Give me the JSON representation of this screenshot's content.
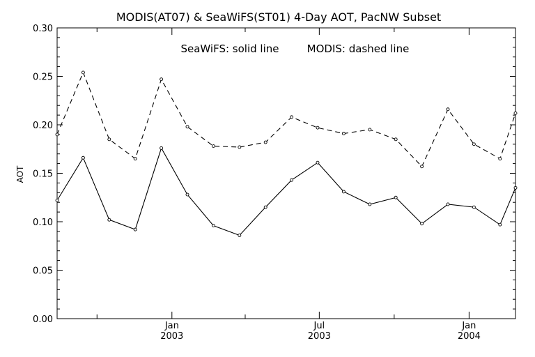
{
  "chart_data": {
    "type": "line",
    "title": "MODIS(AT07) & SeaWiFS(ST01) 4-Day AOT, PacNW Subset",
    "annotation_solid": "SeaWiFS: solid line",
    "annotation_dashed": "MODIS: dashed line",
    "ylabel": "AOT",
    "xlabel": "",
    "ylim": [
      0.0,
      0.3
    ],
    "ytick_values": [
      0.0,
      0.05,
      0.1,
      0.15,
      0.2,
      0.25,
      0.3
    ],
    "ytick_labels": [
      "0.00",
      "0.05",
      "0.10",
      "0.15",
      "0.20",
      "0.25",
      "0.30"
    ],
    "xlim": [
      "2002-08-13",
      "2004-02-27"
    ],
    "x_major_ticks": [
      {
        "date": "2003-01-01",
        "line1": "Jan",
        "line2": "2003"
      },
      {
        "date": "2003-07-01",
        "line1": "Jul",
        "line2": "2003"
      },
      {
        "date": "2004-01-01",
        "line1": "Jan",
        "line2": "2004"
      }
    ],
    "x_minor_ticks": [
      "2002-10-01",
      "2003-04-01",
      "2003-10-01"
    ],
    "x": [
      "2002-08-13",
      "2002-09-14",
      "2002-10-16",
      "2002-11-17",
      "2002-12-19",
      "2003-01-20",
      "2003-02-21",
      "2003-03-25",
      "2003-04-26",
      "2003-05-28",
      "2003-06-29",
      "2003-07-31",
      "2003-09-01",
      "2003-10-03",
      "2003-11-04",
      "2003-12-06",
      "2004-01-07",
      "2004-02-08",
      "2004-02-27"
    ],
    "series": [
      {
        "name": "SeaWiFS",
        "line_style": "solid",
        "values": [
          0.122,
          0.166,
          0.102,
          0.092,
          0.176,
          0.128,
          0.096,
          0.086,
          0.115,
          0.143,
          0.161,
          0.131,
          0.118,
          0.125,
          0.098,
          0.118,
          0.115,
          0.097,
          0.135
        ]
      },
      {
        "name": "MODIS",
        "line_style": "dashed",
        "values": [
          0.19,
          0.254,
          0.185,
          0.165,
          0.247,
          0.198,
          0.178,
          0.177,
          0.182,
          0.208,
          0.197,
          0.191,
          0.195,
          0.185,
          0.157,
          0.216,
          0.18,
          0.165,
          0.212
        ]
      }
    ],
    "grid": false,
    "colors": {
      "line": "#000000",
      "background": "#ffffff"
    }
  }
}
